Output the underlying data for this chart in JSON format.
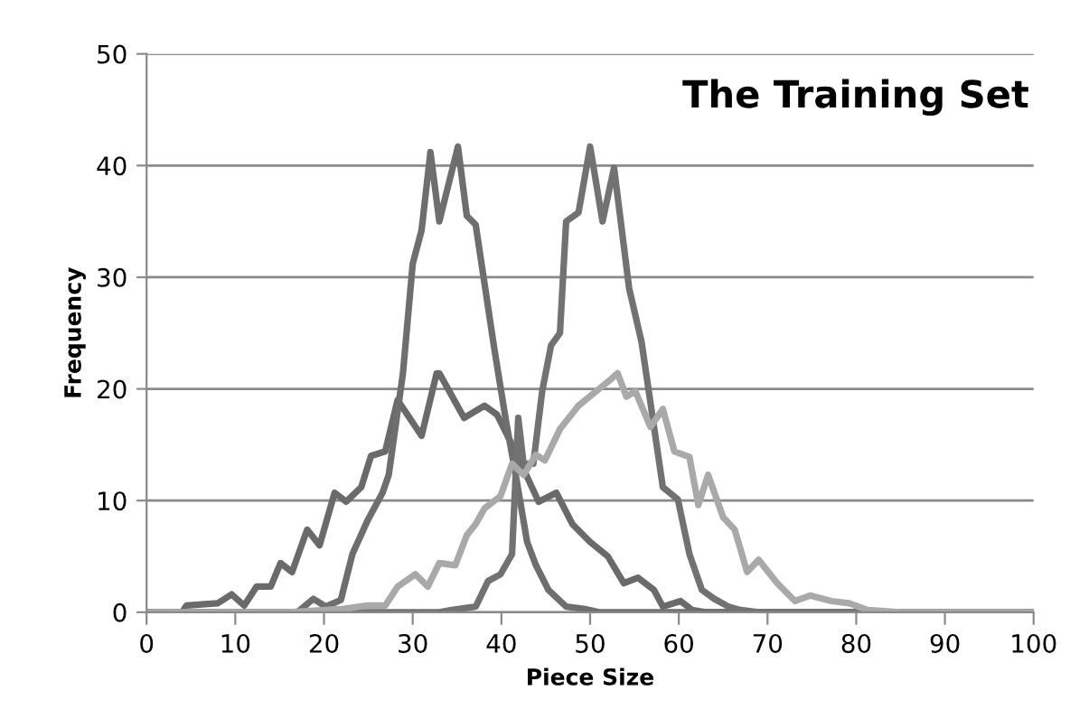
{
  "chart_data": {
    "type": "line",
    "title": "The Training Set",
    "xlabel": "Piece Size",
    "ylabel": "Frequency",
    "xlim": [
      0,
      100
    ],
    "ylim": [
      0,
      50
    ],
    "xticks": [
      0,
      10,
      20,
      30,
      40,
      50,
      60,
      70,
      80,
      90,
      100
    ],
    "yticks": [
      0,
      10,
      20,
      30,
      40,
      50
    ],
    "grid": "y",
    "legend": false,
    "marker": "none",
    "line_style": "solid",
    "series": [
      {
        "color": "#6a6a6a",
        "x": [
          0,
          4,
          4.5,
          8,
          9.6,
          11,
          12.4,
          14,
          15.1,
          16.4,
          18.1,
          19.5,
          21.2,
          22.5,
          24.2,
          25.3,
          26.9,
          28.3,
          31,
          32.7,
          33,
          35.8,
          38.1,
          39.5,
          41.2,
          42.5,
          44.2,
          46.2,
          48,
          50,
          52,
          53.8,
          55.4,
          57.2,
          58.2,
          60.2,
          61.5,
          63,
          100
        ],
        "values": [
          0,
          0,
          0.6,
          0.8,
          1.6,
          0.6,
          2.3,
          2.3,
          4.4,
          3.6,
          7.4,
          6,
          10.7,
          9.9,
          11.2,
          14,
          14.4,
          19,
          15.8,
          21.4,
          21.4,
          17.4,
          18.5,
          17.7,
          15,
          12.8,
          9.9,
          10.7,
          7.9,
          6.3,
          5,
          2.6,
          3.1,
          2,
          0.5,
          1,
          0.2,
          0,
          0
        ]
      },
      {
        "color": "#6e6e6e",
        "x": [
          0,
          17,
          18.8,
          20.2,
          21.9,
          23.2,
          24.9,
          26.6,
          27.3,
          28.9,
          30,
          31,
          32,
          33,
          35.1,
          36.1,
          37.1,
          39.2,
          40.5,
          41.5,
          42.9,
          43.9,
          45.3,
          47.3,
          49.3,
          51,
          100
        ],
        "values": [
          0,
          0,
          1.2,
          0.5,
          1.1,
          5.2,
          8.2,
          10.7,
          12.3,
          21.4,
          31.2,
          34.2,
          41.2,
          35,
          41.7,
          35.5,
          34.7,
          23.6,
          17.2,
          12.8,
          6.3,
          4.2,
          2,
          0.5,
          0.3,
          0,
          0
        ]
      },
      {
        "color": "#727272",
        "x": [
          0,
          33,
          34.4,
          37.1,
          38.5,
          39.9,
          41.2,
          41.9,
          42.5,
          43.6,
          44.6,
          45.6,
          46.6,
          47.3,
          48.7,
          50,
          51.4,
          52.7,
          54.4,
          55.8,
          56.8,
          58.2,
          59.9,
          61.2,
          62.6,
          64,
          65.6,
          67,
          69,
          100
        ],
        "values": [
          0,
          0,
          0.2,
          0.5,
          2.8,
          3.4,
          5.2,
          17.4,
          13.3,
          13.3,
          19.8,
          23.9,
          25,
          35,
          35.8,
          41.7,
          35,
          39.8,
          29,
          24.2,
          18.8,
          11.2,
          10.1,
          5.2,
          2,
          1.2,
          0.5,
          0.2,
          0,
          0
        ]
      },
      {
        "color": "#a9a9a9",
        "x": [
          0,
          16,
          22.2,
          24.9,
          26.9,
          28.3,
          30.3,
          31.7,
          33,
          34.8,
          36.1,
          37.1,
          38.1,
          39.9,
          41.2,
          42.5,
          43.9,
          44.9,
          46.6,
          48.7,
          50.7,
          52.4,
          53.1,
          54.1,
          55.1,
          56.8,
          58.2,
          59.5,
          61.2,
          62.2,
          63.3,
          65,
          66.3,
          67.7,
          69,
          71.1,
          73.1,
          74.8,
          77.2,
          79.2,
          81.3,
          85,
          100
        ],
        "values": [
          0,
          0,
          0.3,
          0.6,
          0.6,
          2.3,
          3.4,
          2.3,
          4.4,
          4.2,
          6.9,
          7.9,
          9.3,
          10.4,
          13.3,
          12.3,
          14.1,
          13.6,
          16.4,
          18.5,
          19.8,
          20.9,
          21.4,
          19.3,
          19.8,
          16.6,
          18.2,
          14.4,
          13.9,
          9.6,
          12.3,
          8.5,
          7.4,
          3.6,
          4.7,
          2.6,
          1,
          1.5,
          1,
          0.8,
          0.2,
          0,
          0
        ]
      }
    ]
  }
}
